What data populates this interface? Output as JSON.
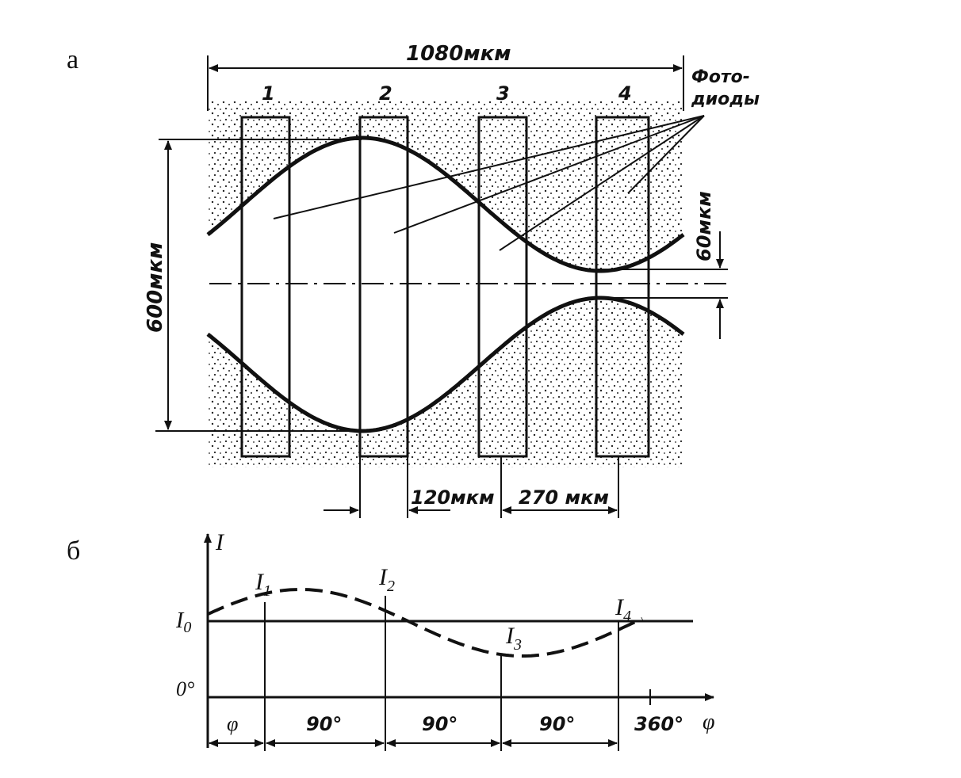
{
  "panel_a": {
    "label": "а",
    "width_label": "1080мкм",
    "height_label": "600мкм",
    "gap_label": "60мкм",
    "photodiodes_label_line1": "Фото-",
    "photodiodes_label_line2": "диоды",
    "diode_numbers": [
      "1",
      "2",
      "3",
      "4"
    ],
    "spacing_label_1": "120мкм",
    "spacing_label_2": "270 мкм"
  },
  "panel_b": {
    "label": "б",
    "y_axis_label": "I",
    "x_axis_label": "φ",
    "origin_label": "0°",
    "i0_label": "I",
    "i0_sub": "0",
    "point_labels": [
      {
        "main": "I",
        "sub": "1"
      },
      {
        "main": "I",
        "sub": "2"
      },
      {
        "main": "I",
        "sub": "3"
      },
      {
        "main": "I",
        "sub": "4"
      }
    ],
    "interval_labels": [
      "φ",
      "90°",
      "90°",
      "90°",
      "360°"
    ]
  },
  "colors": {
    "ink": "#111111",
    "paper": "#ffffff",
    "stipple": "#222222"
  }
}
